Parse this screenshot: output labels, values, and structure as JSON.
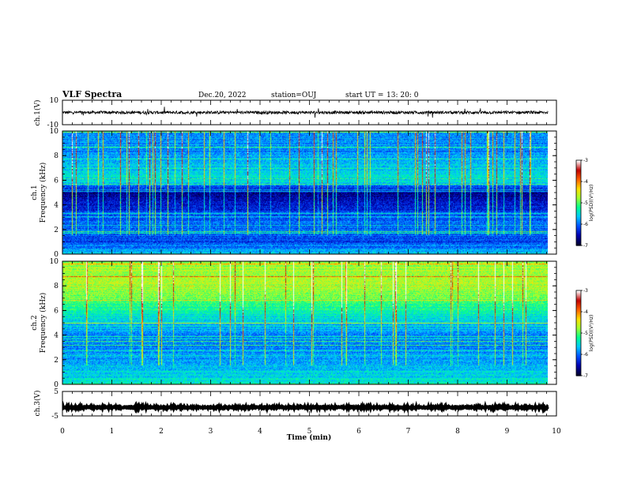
{
  "header": {
    "title": "VLF Spectra",
    "date": "Dec.20, 2022",
    "station": "station=OUJ",
    "start_label": "start  UT  =",
    "start_time": "13: 20: 0"
  },
  "xaxis": {
    "label": "Time  (min)",
    "range": [
      0,
      10
    ],
    "ticks": [
      "0",
      "1",
      "2",
      "3",
      "4",
      "5",
      "6",
      "7",
      "8",
      "9",
      "10"
    ]
  },
  "panels": {
    "ch1_wave": {
      "ylabel": "ch.1(V)",
      "range": [
        -10,
        10
      ],
      "ticks": [
        "10",
        "-10"
      ]
    },
    "ch1_spec": {
      "ylabel_line1": "ch.1",
      "ylabel_line2": "Frequency  (kHz)",
      "range": [
        0,
        10
      ],
      "ticks": [
        "0",
        "2",
        "4",
        "6",
        "8",
        "10"
      ]
    },
    "ch2_spec": {
      "ylabel_line1": "ch.2",
      "ylabel_line2": "Frequency  (kHz)",
      "range": [
        0,
        10
      ],
      "ticks": [
        "0",
        "2",
        "4",
        "6",
        "8",
        "10"
      ]
    },
    "ch3_wave": {
      "ylabel": "ch.3(V)",
      "range": [
        -5,
        5
      ],
      "ticks": [
        "5",
        "-5"
      ]
    }
  },
  "colorbar": {
    "label": "log(PSD)(V²/Hz)",
    "range": [
      -7,
      -3
    ],
    "ticks": [
      "-3",
      "-4",
      "-5",
      "-6",
      "-7"
    ],
    "colors": [
      "#000030",
      "#0000b0",
      "#0050ff",
      "#00c8ff",
      "#00ff90",
      "#a0ff30",
      "#ffe000",
      "#ff6000",
      "#c00000",
      "#ffffff"
    ]
  },
  "chart_data": {
    "type": "heatmap",
    "title": "VLF Spectra",
    "xlabel": "Time  (min)",
    "xlim": [
      0,
      9.83
    ],
    "channels": [
      {
        "name": "ch.1",
        "ylabel": "Frequency  (kHz)",
        "ylim": [
          0,
          10
        ],
        "psd_profile_khz": [
          0,
          1,
          2,
          3,
          4,
          5,
          6,
          7,
          8,
          9,
          10
        ],
        "psd_profile_log": [
          -5.6,
          -6.2,
          -6.0,
          -6.1,
          -6.4,
          -6.6,
          -5.5,
          -5.6,
          -5.8,
          -5.9,
          -5.9
        ]
      },
      {
        "name": "ch.2",
        "ylabel": "Frequency  (kHz)",
        "ylim": [
          0,
          10
        ],
        "psd_profile_khz": [
          0,
          1,
          2,
          3,
          4,
          5,
          6,
          7,
          8,
          9,
          10
        ],
        "psd_profile_log": [
          -5.4,
          -5.6,
          -5.8,
          -5.9,
          -5.9,
          -5.6,
          -5.3,
          -4.9,
          -4.7,
          -4.7,
          -4.8
        ]
      }
    ],
    "waveforms": [
      {
        "name": "ch.1(V)",
        "ylim": [
          -10,
          10
        ],
        "level": 0,
        "noise_amplitude": 1.2
      },
      {
        "name": "ch.3(V)",
        "ylim": [
          -5,
          5
        ],
        "level": -1.5,
        "noise_amplitude": 0.3
      }
    ],
    "colorbar": {
      "label": "log(PSD)(V²/Hz)",
      "range": [
        -7,
        -3
      ]
    }
  }
}
